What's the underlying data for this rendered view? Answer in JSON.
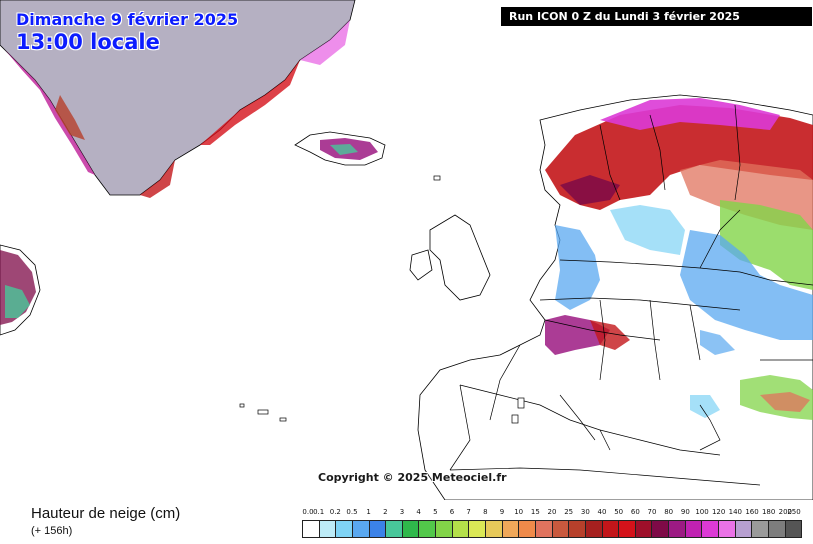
{
  "header": {
    "date": "Dimanche 9 février 2025",
    "local_time": "13:00 locale",
    "run": "Run ICON 0 Z du Lundi 3 février 2025"
  },
  "map": {
    "copyright": "Copyright © 2025 Meteociel.fr",
    "land_color": "#ffffff",
    "greenland_color": "#b5b0c2",
    "border_color": "#000000"
  },
  "footer": {
    "parameter": "Hauteur de neige (cm)",
    "lead_time": "(+ 156h)"
  },
  "legend": {
    "labels": [
      "0.0",
      "0.1",
      "0.2",
      "0.5",
      "1",
      "2",
      "3",
      "4",
      "5",
      "6",
      "7",
      "8",
      "9",
      "10",
      "15",
      "20",
      "25",
      "30",
      "40",
      "50",
      "60",
      "70",
      "80",
      "90",
      "100",
      "120",
      "140",
      "160",
      "180",
      "200",
      "250"
    ],
    "colors": [
      "#ffffff",
      "#bdebf7",
      "#7fd3f5",
      "#5aa8f0",
      "#3b82e8",
      "#48c79a",
      "#2fb84b",
      "#52c84a",
      "#82d448",
      "#b4e04a",
      "#dbe856",
      "#e7c95a",
      "#f0a85a",
      "#ef8a4a",
      "#e0735e",
      "#c9593e",
      "#b7402b",
      "#a6201f",
      "#c3161a",
      "#d4121a",
      "#9e0f2a",
      "#7e0a47",
      "#9c1a83",
      "#c022b2",
      "#dc3ad6",
      "#ea72e6",
      "#b79fd0",
      "#9a9a9a",
      "#7d7d7d",
      "#555555"
    ]
  }
}
